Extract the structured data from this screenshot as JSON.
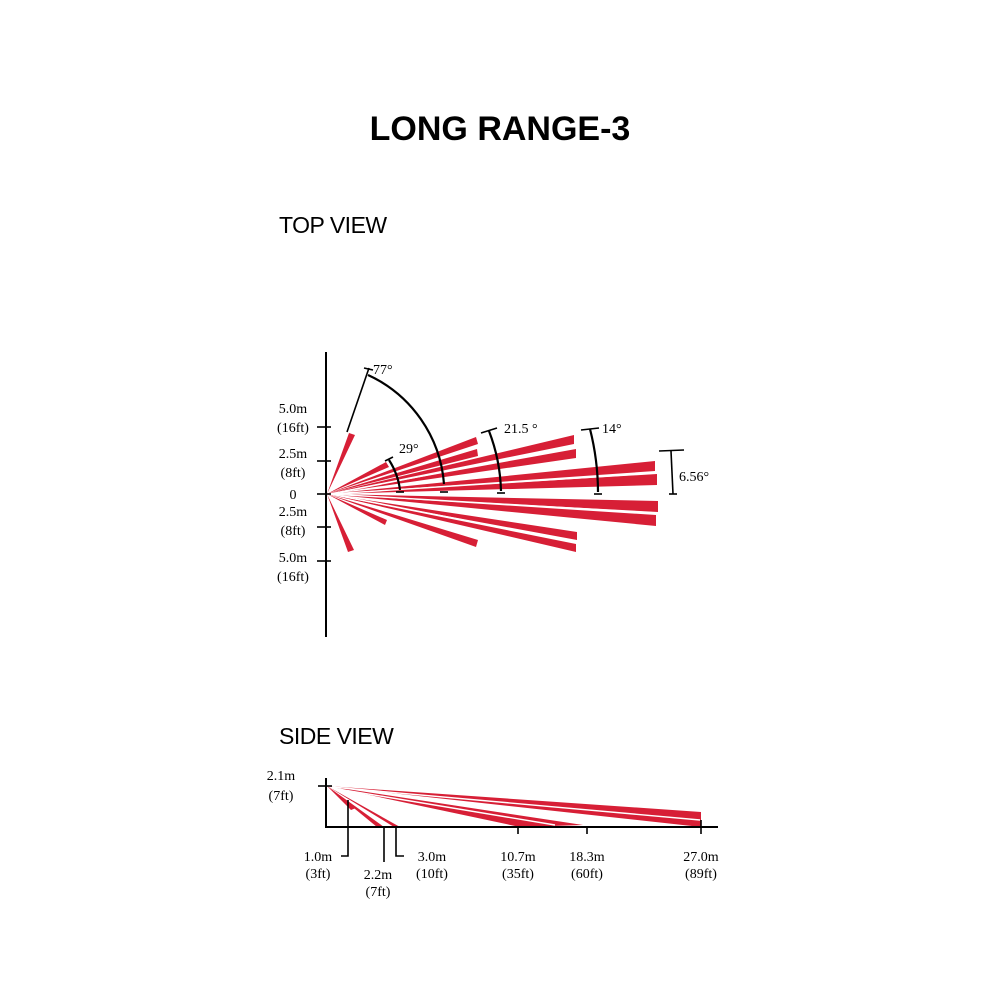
{
  "title": "LONG RANGE-3",
  "top_view": {
    "heading": "TOP VIEW",
    "axis_labels": [
      {
        "value": "5.0m",
        "unit": "(16ft)"
      },
      {
        "value": "2.5m",
        "unit": "(8ft)"
      },
      {
        "value": "0"
      },
      {
        "value": "2.5m",
        "unit": "(8ft)"
      },
      {
        "value": "5.0m",
        "unit": "(16ft)"
      }
    ],
    "angles": [
      "77°",
      "29°",
      "21.5 °",
      "14°",
      "6.56°"
    ]
  },
  "side_view": {
    "heading": "SIDE VIEW",
    "height_label": {
      "value": "2.1m",
      "unit": "(7ft)"
    },
    "distance_labels": [
      {
        "value": "1.0m",
        "unit": "(3ft)"
      },
      {
        "value": "2.2m",
        "unit": "(7ft)"
      },
      {
        "value": "3.0m",
        "unit": "(10ft)"
      },
      {
        "value": "10.7m",
        "unit": "(35ft)"
      },
      {
        "value": "18.3m",
        "unit": "(60ft)"
      },
      {
        "value": "27.0m",
        "unit": "(89ft)"
      }
    ]
  },
  "colors": {
    "beam": "#d71f36",
    "line": "#000000",
    "background": "#ffffff"
  }
}
